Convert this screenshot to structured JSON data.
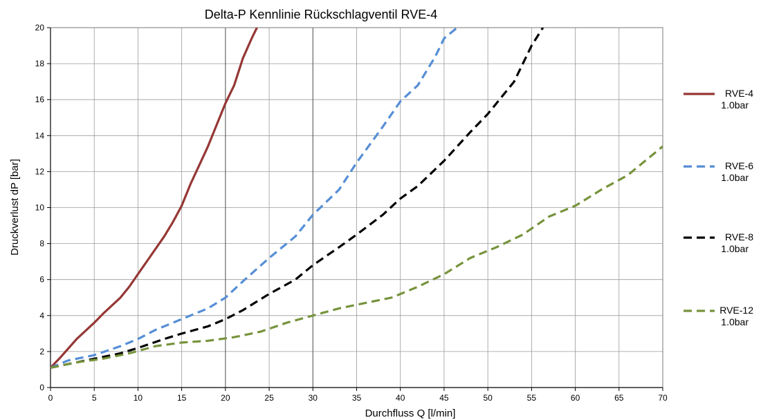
{
  "chart_data": {
    "type": "line",
    "title": "Delta-P Kennlinie  Rückschlagventil RVE-4",
    "xlabel": "Durchfluss Q [l/min]",
    "ylabel": "Druckverlust dP [bar]",
    "xlim": [
      0,
      70
    ],
    "ylim": [
      0,
      20
    ],
    "xticks": [
      "0",
      "5",
      "10",
      "15",
      "20",
      "25",
      "30",
      "35",
      "40",
      "45",
      "50",
      "55",
      "60",
      "65",
      "70"
    ],
    "yticks": [
      "0",
      "2",
      "4",
      "6",
      "8",
      "10",
      "12",
      "14",
      "16",
      "18",
      "20"
    ],
    "grid": true,
    "legend_position": "right",
    "series": [
      {
        "name": "RVE-4",
        "sublabel": "1.0bar",
        "color": "#953735",
        "dash": "solid",
        "x": [
          0,
          1,
          3,
          5,
          6,
          8,
          9,
          10,
          11,
          13,
          14,
          15,
          16,
          18,
          19,
          20,
          21,
          22,
          23,
          23.6
        ],
        "y": [
          1.1,
          1.6,
          2.7,
          3.6,
          4.1,
          5.0,
          5.6,
          6.3,
          7.0,
          8.4,
          9.2,
          10.1,
          11.3,
          13.4,
          14.6,
          15.8,
          16.8,
          18.3,
          19.4,
          20.0
        ]
      },
      {
        "name": "RVE-6",
        "sublabel": "1.0bar",
        "color": "#558ED5",
        "dash": "dashed",
        "x": [
          0,
          2,
          5,
          8,
          10,
          12,
          15,
          18,
          20,
          22,
          25,
          28,
          30,
          33,
          35,
          38,
          40,
          42,
          44,
          45,
          46.5
        ],
        "y": [
          1.1,
          1.5,
          1.8,
          2.3,
          2.7,
          3.2,
          3.8,
          4.4,
          5.0,
          5.9,
          7.2,
          8.4,
          9.6,
          11.0,
          12.5,
          14.5,
          15.9,
          16.8,
          18.4,
          19.4,
          20.0
        ]
      },
      {
        "name": "RVE-8",
        "sublabel": "1.0bar",
        "color": "#000000",
        "dash": "dashed",
        "x": [
          0,
          2,
          5,
          8,
          10,
          13,
          15,
          18,
          20,
          22,
          25,
          28,
          30,
          33,
          35,
          38,
          40,
          42,
          45,
          48,
          50,
          53,
          55,
          56.3
        ],
        "y": [
          1.1,
          1.3,
          1.6,
          1.9,
          2.2,
          2.7,
          3.0,
          3.4,
          3.8,
          4.3,
          5.2,
          6.0,
          6.8,
          7.8,
          8.5,
          9.6,
          10.5,
          11.2,
          12.6,
          14.2,
          15.2,
          17.0,
          19.0,
          20.0
        ]
      },
      {
        "name": "RVE-12",
        "sublabel": "1.0bar",
        "color": "#77933C",
        "dash": "dashed",
        "x": [
          0,
          3,
          6,
          9,
          12,
          15,
          18,
          21,
          24,
          27,
          30,
          33,
          36,
          39,
          42,
          45,
          48,
          51,
          54,
          57,
          60,
          63,
          66,
          70
        ],
        "y": [
          1.1,
          1.4,
          1.6,
          1.9,
          2.3,
          2.5,
          2.6,
          2.8,
          3.1,
          3.6,
          4.0,
          4.4,
          4.7,
          5.0,
          5.6,
          6.3,
          7.2,
          7.8,
          8.5,
          9.5,
          10.1,
          11.0,
          11.8,
          13.4
        ]
      }
    ]
  }
}
